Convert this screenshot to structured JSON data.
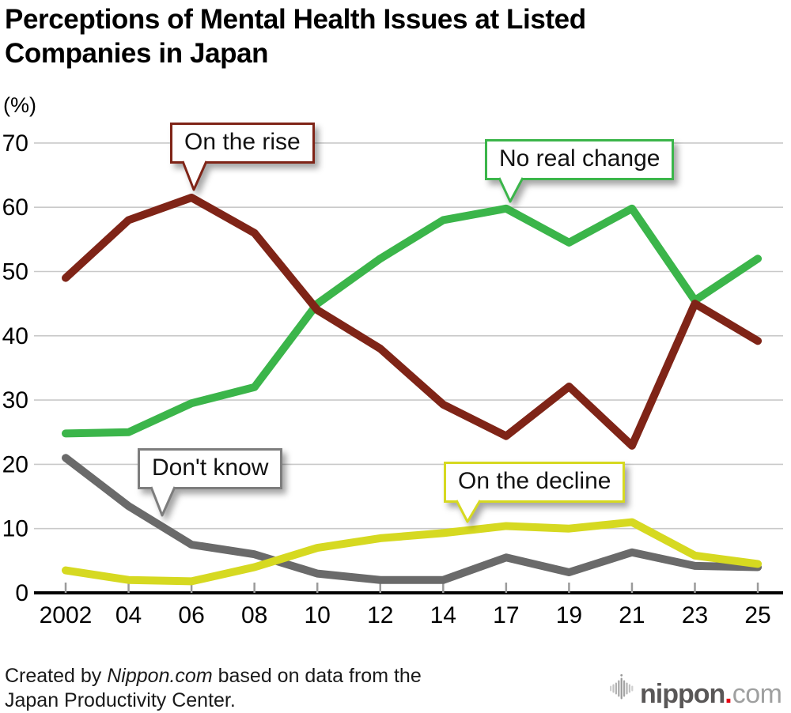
{
  "title_lines": [
    "Perceptions of Mental Health Issues at Listed",
    "Companies in Japan"
  ],
  "unit_label": "(%)",
  "chart_data": {
    "type": "line",
    "categories": [
      "2002",
      "04",
      "06",
      "08",
      "10",
      "12",
      "14",
      "17",
      "19",
      "21",
      "23",
      "25"
    ],
    "series": [
      {
        "name": "Don't know",
        "color": "#6a6a6a",
        "values": [
          21,
          13.5,
          7.5,
          6,
          3,
          2,
          2,
          5.5,
          3.2,
          6.3,
          4.2,
          4
        ]
      },
      {
        "name": "On the decline",
        "color": "#d6d921",
        "values": [
          3.5,
          2,
          1.8,
          4,
          7,
          8.5,
          9.3,
          10.4,
          10,
          11,
          5.8,
          4.5
        ]
      },
      {
        "name": "No real change",
        "color": "#3bb54a",
        "values": [
          24.8,
          25,
          29.5,
          32,
          45,
          52,
          58,
          59.8,
          54.5,
          59.8,
          45.5,
          52
        ]
      },
      {
        "name": "On the rise",
        "color": "#7f2417",
        "values": [
          49,
          58,
          61.5,
          56,
          44,
          38,
          29.3,
          24.4,
          32.1,
          22.9,
          45,
          39.2
        ]
      }
    ],
    "ylim": [
      0,
      70
    ],
    "ytick_step": 10,
    "grid": true,
    "legend": "callout-labels",
    "title": "Perceptions of Mental Health Issues at Listed Companies in Japan",
    "ylabel": "(%)",
    "xlabel": ""
  },
  "callouts": [
    {
      "label": "On the rise",
      "color": "#7f2417"
    },
    {
      "label": "No real change",
      "color": "#3bb54a"
    },
    {
      "label": "Don't know",
      "color": "#7d7d7d"
    },
    {
      "label": "On the decline",
      "color": "#d6d921"
    }
  ],
  "footer": {
    "prefix": "Created by ",
    "source_italic": "Nippon.com",
    "suffix": " based on data from the Japan Productivity Center."
  },
  "logo": {
    "icon": "sound-wave-icon",
    "name": "nippon",
    "dot": ".",
    "tld": "com",
    "name_color": "#595757",
    "dot_color": "#e60012",
    "tld_color": "#9fa0a0"
  }
}
